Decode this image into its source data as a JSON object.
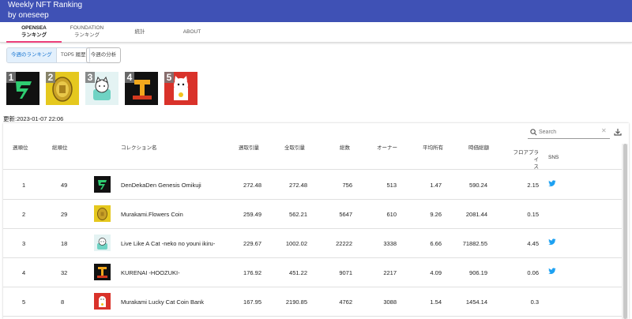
{
  "header": {
    "title_line1": "Weekly NFT Ranking",
    "title_line2": "by oneseep"
  },
  "tabs": [
    {
      "line1": "OPENSEA",
      "line2": "ランキング",
      "active": true
    },
    {
      "line1": "FOUNDATION",
      "line2": "ランキング",
      "active": false
    },
    {
      "line1": "統計",
      "line2": "",
      "active": false
    },
    {
      "line1": "ABOUT",
      "line2": "",
      "active": false
    }
  ],
  "toggle": {
    "this_week": "今週のランキング",
    "top5_history": "TOP5 履歴"
  },
  "analysis_button": "今週の分析",
  "top5": [
    {
      "rank": "1",
      "icon": "omikuji-logo"
    },
    {
      "rank": "2",
      "icon": "flowers-coin"
    },
    {
      "rank": "3",
      "icon": "cat-in-cup"
    },
    {
      "rank": "4",
      "icon": "kurenai-logo"
    },
    {
      "rank": "5",
      "icon": "lucky-cat"
    }
  ],
  "updated": "更新:2023-01-07 22:06",
  "search": {
    "placeholder": "Search",
    "value": ""
  },
  "table": {
    "headers": {
      "weekly_rank": "週順位",
      "overall_rank": "総順位",
      "collection": "コレクション名",
      "weekly_volume": "週取引量",
      "total_volume": "全取引量",
      "count": "総数",
      "owners": "オーナー",
      "avg_owned": "平均所有",
      "market_cap": "時価総額",
      "floor_line1": "フロアプライ",
      "floor_line2": "ス",
      "sns": "SNS"
    },
    "rows": [
      {
        "weekly_rank": "1",
        "overall_rank": "49",
        "name": "DenDekaDen Genesis Omikuji",
        "weekly_volume": "272.48",
        "total_volume": "272.48",
        "count": "756",
        "owners": "513",
        "avg_owned": "1.47",
        "market_cap": "590.24",
        "floor": "2.15",
        "twitter": true
      },
      {
        "weekly_rank": "2",
        "overall_rank": "29",
        "name": "Murakami.Flowers Coin",
        "weekly_volume": "259.49",
        "total_volume": "562.21",
        "count": "5647",
        "owners": "610",
        "avg_owned": "9.26",
        "market_cap": "2081.44",
        "floor": "0.15",
        "twitter": false
      },
      {
        "weekly_rank": "3",
        "overall_rank": "18",
        "name": "Live Like A Cat -neko no youni ikiru-",
        "weekly_volume": "229.67",
        "total_volume": "1002.02",
        "count": "22222",
        "owners": "3338",
        "avg_owned": "6.66",
        "market_cap": "71882.55",
        "floor": "4.45",
        "twitter": true
      },
      {
        "weekly_rank": "4",
        "overall_rank": "32",
        "name": "KURENAI -HOOZUKI-",
        "weekly_volume": "176.92",
        "total_volume": "451.22",
        "count": "9071",
        "owners": "2217",
        "avg_owned": "4.09",
        "market_cap": "906.19",
        "floor": "0.06",
        "twitter": true
      },
      {
        "weekly_rank": "5",
        "overall_rank": "8",
        "name": "Murakami Lucky Cat Coin Bank",
        "weekly_volume": "167.95",
        "total_volume": "2190.85",
        "count": "4762",
        "owners": "3088",
        "avg_owned": "1.54",
        "market_cap": "1454.14",
        "floor": "0.3",
        "twitter": false
      }
    ]
  },
  "colors": {
    "appbar": "#3f51b5",
    "tab_indicator": "#ec407a",
    "accent": "#1976d2",
    "twitter": "#1da1f2"
  }
}
